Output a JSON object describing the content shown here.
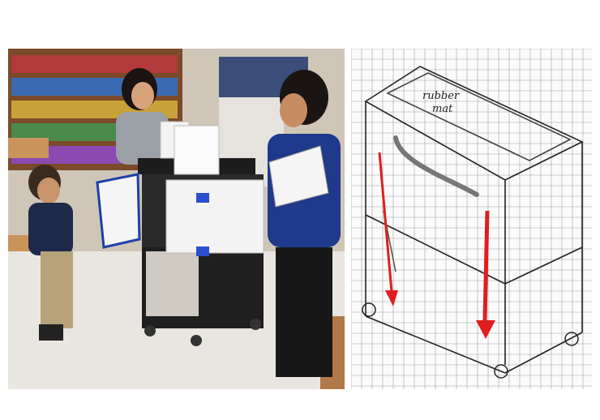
{
  "figure": {
    "photo": {
      "description_icon": "photo-classroom-cart-icon"
    },
    "sketch": {
      "annotation_top": "rubber",
      "annotation_bottom": "mat",
      "arrow_color": "#e01e1e",
      "grid_color": "#9aa0a6"
    }
  }
}
